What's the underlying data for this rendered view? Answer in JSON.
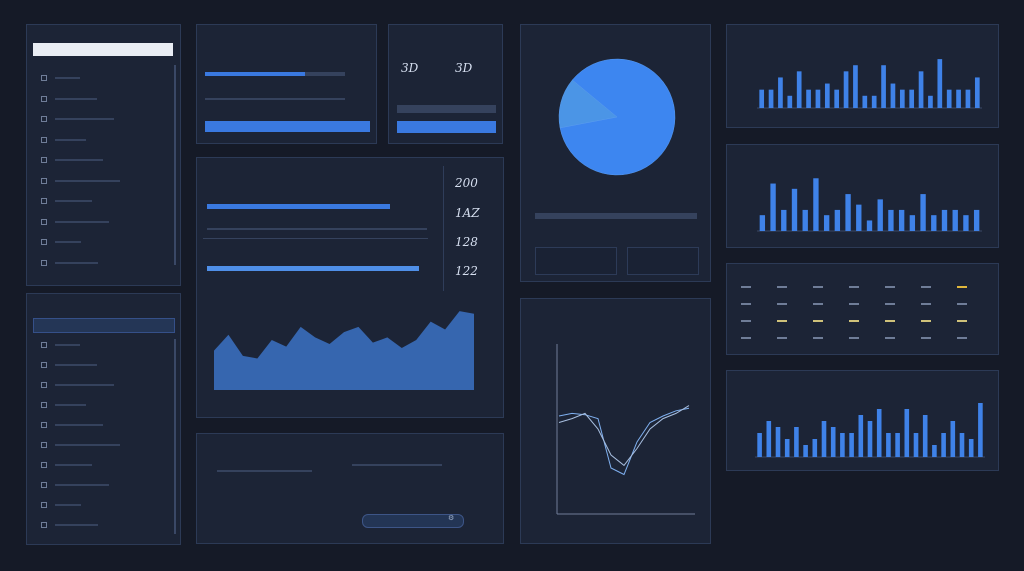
{
  "colors": {
    "accent": "#3a79e0",
    "bg": "#151a27",
    "panel": "#1c2436",
    "text": "#b9c6dd"
  },
  "sidebar_top": {
    "search_placeholder": "",
    "items": [
      "",
      "",
      "",
      "",
      "",
      "",
      "",
      "",
      "",
      ""
    ]
  },
  "sidebar_bottom": {
    "title": "",
    "selected": "",
    "items": [
      "",
      "",
      "",
      "",
      "",
      "",
      "",
      "",
      "",
      ""
    ]
  },
  "panel_controls": {
    "title": "",
    "rows": [
      "",
      "",
      ""
    ],
    "values": [
      "",
      "",
      ""
    ]
  },
  "panel_stats": {
    "labels": [
      "",
      ""
    ],
    "values": [
      "3D",
      "3D"
    ],
    "buttons": [
      "",
      "",
      "",
      ""
    ]
  },
  "panel_main": {
    "title": "",
    "rows": [
      "",
      ""
    ],
    "right_values": [
      "200",
      "1AZ",
      "128",
      "122"
    ]
  },
  "panel_pie": {
    "title": ""
  },
  "panel_bars1": {
    "title": ""
  },
  "panel_bars2": {
    "title": ""
  },
  "panel_table": {
    "title": "",
    "headers": [
      "",
      "",
      "",
      "",
      "",
      "",
      ""
    ]
  },
  "panel_bars3": {
    "title": ""
  },
  "panel_line": {
    "title": ""
  },
  "panel_bottom": {
    "title": "",
    "items": [
      "",
      "",
      "",
      ""
    ],
    "button": "",
    "value": ""
  },
  "chart_data": [
    {
      "type": "pie",
      "values": [
        86,
        14
      ]
    },
    {
      "type": "bar",
      "values": [
        3,
        3,
        5,
        2,
        6,
        3,
        3,
        4,
        3,
        6,
        7,
        2,
        2,
        7,
        4,
        3,
        3,
        6,
        2,
        8,
        3,
        3,
        3,
        5
      ]
    },
    {
      "type": "bar",
      "values": [
        3,
        9,
        4,
        8,
        4,
        10,
        3,
        4,
        7,
        5,
        2,
        6,
        4,
        4,
        3,
        7,
        3,
        4,
        4,
        3,
        4
      ]
    },
    {
      "type": "bar",
      "values": [
        4,
        6,
        5,
        3,
        5,
        2,
        3,
        6,
        5,
        4,
        4,
        7,
        6,
        8,
        4,
        4,
        8,
        4,
        7,
        2,
        4,
        6,
        4,
        3,
        9
      ]
    },
    {
      "type": "area",
      "values": [
        30,
        42,
        26,
        24,
        38,
        33,
        48,
        40,
        35,
        44,
        48,
        36,
        40,
        32,
        38,
        52,
        46,
        60,
        58
      ]
    },
    {
      "type": "line",
      "series": [
        {
          "values": [
            60,
            62,
            61,
            58,
            20,
            15,
            40,
            55,
            60,
            64,
            66
          ]
        },
        {
          "values": [
            55,
            58,
            62,
            50,
            30,
            22,
            35,
            50,
            58,
            62,
            68
          ]
        }
      ]
    }
  ]
}
